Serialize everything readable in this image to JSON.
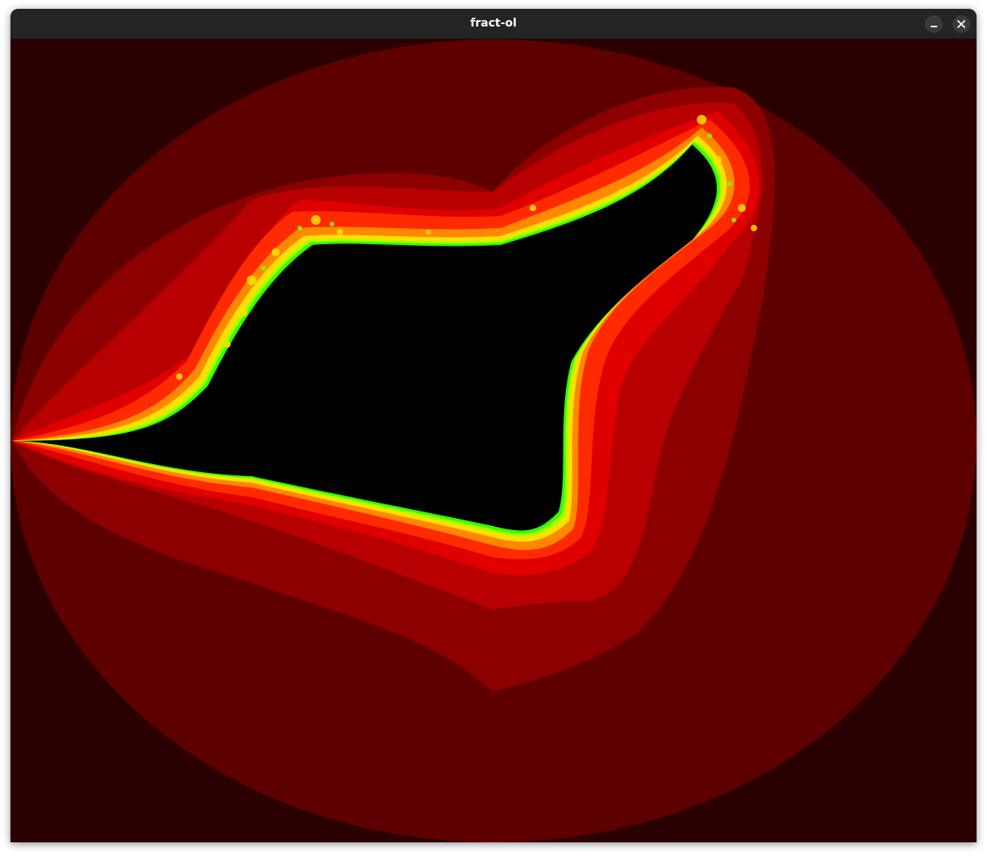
{
  "window": {
    "title": "fract-ol",
    "minimize_icon": "minimize-icon",
    "close_icon": "close-icon"
  },
  "render": {
    "colors": {
      "background": "#2a0000",
      "band1": "#5e0000",
      "band2": "#8c0000",
      "band3": "#b80000",
      "band4": "#e00000",
      "band5": "#ff2a00",
      "band6": "#ff8800",
      "band7": "#ffe000",
      "band8": "#a8ff00",
      "band9": "#33ff00",
      "set": "#000000"
    }
  }
}
